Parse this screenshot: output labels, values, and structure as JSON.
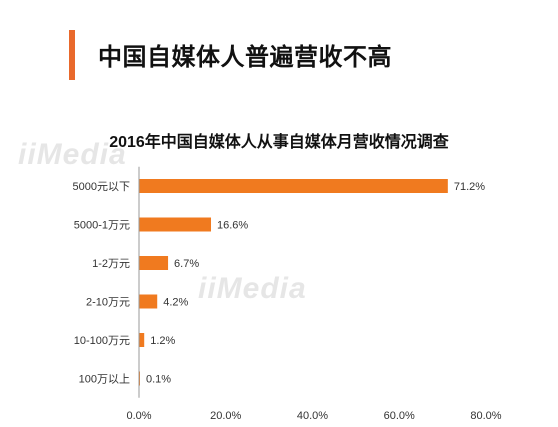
{
  "header": {
    "title": "中国自媒体人普遍营收不高"
  },
  "watermark": {
    "text": "iiMedia"
  },
  "chart_data": {
    "type": "bar",
    "orientation": "horizontal",
    "title": "2016年中国自媒体人从事自媒体月营收情况调查",
    "categories": [
      "5000元以下",
      "5000-1万元",
      "1-2万元",
      "2-10万元",
      "10-100万元",
      "100万以上"
    ],
    "values": [
      71.2,
      16.6,
      6.7,
      4.2,
      1.2,
      0.1
    ],
    "value_labels": [
      "71.2%",
      "16.6%",
      "6.7%",
      "4.2%",
      "1.2%",
      "0.1%"
    ],
    "x_ticks": [
      "0.0%",
      "20.0%",
      "40.0%",
      "60.0%",
      "80.0%"
    ],
    "xlim": [
      0,
      80
    ],
    "xlabel": "",
    "ylabel": "",
    "grid": false,
    "legend": "none",
    "bar_color": "#f07a1f"
  }
}
